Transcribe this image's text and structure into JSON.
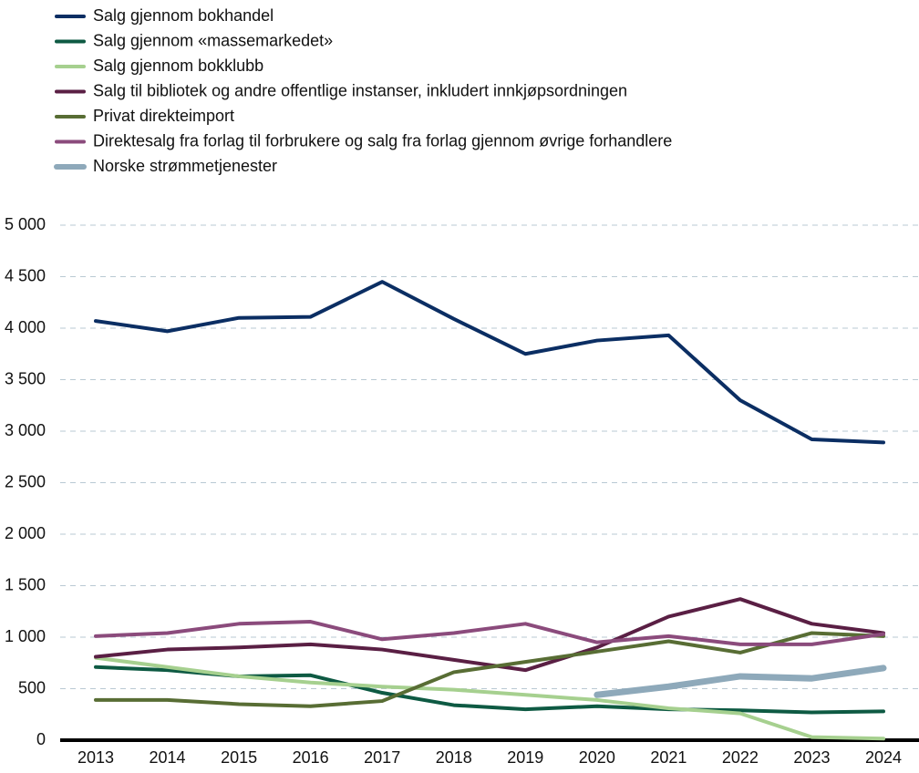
{
  "chart_data": {
    "type": "line",
    "categories": [
      "2013",
      "2014",
      "2015",
      "2016",
      "2017",
      "2018",
      "2019",
      "2020",
      "2021",
      "2022",
      "2023",
      "2024"
    ],
    "series": [
      {
        "name": "Salg gjennom bokhandel",
        "color": "#0b2e63",
        "values": [
          4070,
          3970,
          4100,
          4110,
          4450,
          4090,
          3750,
          3880,
          3930,
          3300,
          2920,
          2890
        ]
      },
      {
        "name": "Salg gjennom «massemarkedet»",
        "color": "#0e5a43",
        "values": [
          710,
          680,
          620,
          630,
          460,
          340,
          300,
          330,
          300,
          290,
          270,
          280
        ]
      },
      {
        "name": "Salg gjennom bokklubb",
        "color": "#a6d08f",
        "values": [
          800,
          710,
          620,
          560,
          520,
          490,
          440,
          390,
          310,
          260,
          30,
          15
        ]
      },
      {
        "name": "Salg til bibliotek og andre offentlige instanser, inkludert innkjøpsordningen",
        "color": "#5a1f44",
        "values": [
          810,
          880,
          900,
          930,
          880,
          780,
          680,
          900,
          1200,
          1370,
          1130,
          1040
        ]
      },
      {
        "name": "Privat direkteimport",
        "color": "#586d34",
        "values": [
          390,
          390,
          350,
          330,
          380,
          660,
          760,
          860,
          960,
          850,
          1040,
          1010
        ]
      },
      {
        "name": "Direktesalg fra forlag til forbrukere og salg fra forlag gjennom øvrige forhandlere",
        "color": "#8b4b7c",
        "values": [
          1010,
          1040,
          1130,
          1150,
          980,
          1040,
          1130,
          950,
          1010,
          930,
          930,
          1030
        ]
      },
      {
        "name": "Norske strømmetjenester",
        "color": "#8ea9ba",
        "values": [
          null,
          null,
          null,
          null,
          null,
          null,
          null,
          440,
          520,
          620,
          600,
          700
        ]
      }
    ],
    "ylim": [
      0,
      5000
    ],
    "yticks": [
      0,
      500,
      {
        "value": 1000,
        "label": "1 000"
      },
      {
        "value": 1500,
        "label": "1 500"
      },
      {
        "value": 2000,
        "label": "2 000"
      },
      {
        "value": 2500,
        "label": "2 500"
      },
      {
        "value": 3000,
        "label": "3 000"
      },
      {
        "value": 3500,
        "label": "3 500"
      },
      {
        "value": 4000,
        "label": "4 000"
      },
      {
        "value": 4500,
        "label": "4 500"
      },
      {
        "value": 5000,
        "label": "5 000"
      }
    ],
    "grid": true
  }
}
